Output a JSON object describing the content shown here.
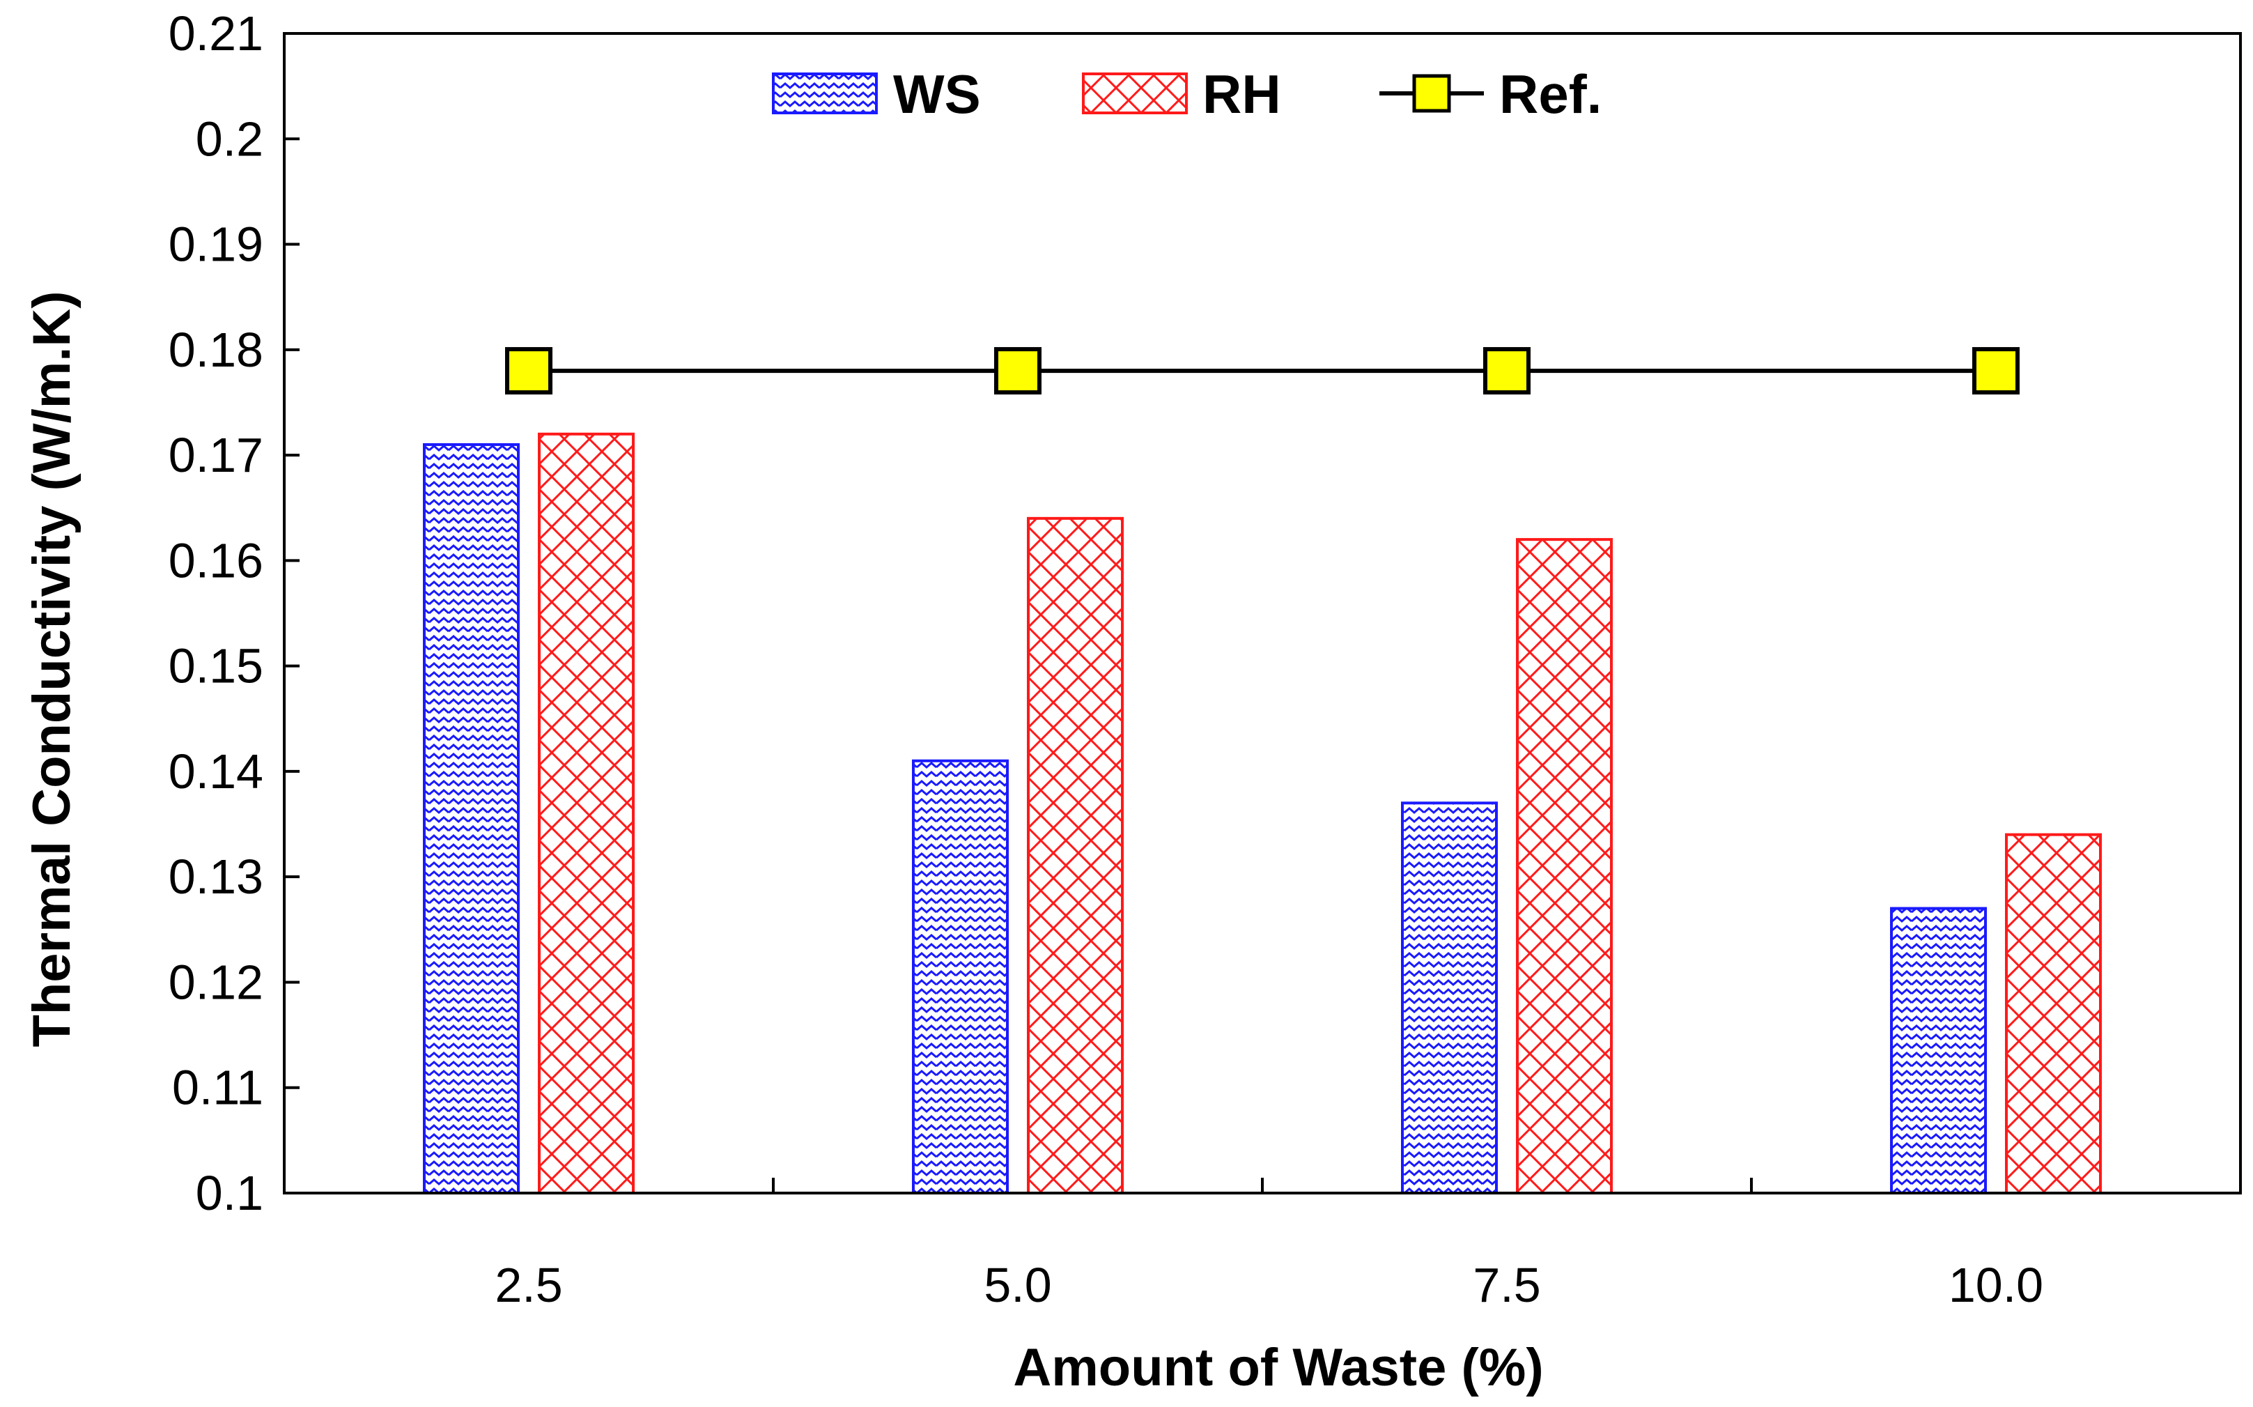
{
  "chart_data": {
    "type": "bar",
    "title": "",
    "xlabel": "Amount of Waste (%)",
    "ylabel": "Thermal Conductivity (W/m.K)",
    "categories": [
      "2.5",
      "5.0",
      "7.5",
      "10.0"
    ],
    "ylim": [
      0.1,
      0.21
    ],
    "yticks": [
      0.1,
      0.11,
      0.12,
      0.13,
      0.14,
      0.15,
      0.16,
      0.17,
      0.18,
      0.19,
      0.2,
      0.21
    ],
    "ytick_labels": [
      "0.1",
      "0.11",
      "0.12",
      "0.13",
      "0.14",
      "0.15",
      "0.16",
      "0.17",
      "0.18",
      "0.19",
      "0.2",
      "0.21"
    ],
    "grid": false,
    "legend_position": "top-center",
    "series": [
      {
        "name": "WS",
        "kind": "bar",
        "pattern": "zigzag",
        "color": "#1a1aff",
        "values": [
          0.171,
          0.141,
          0.137,
          0.127
        ]
      },
      {
        "name": "RH",
        "kind": "bar",
        "pattern": "crosshatch",
        "color": "#ff1a1a",
        "values": [
          0.172,
          0.164,
          0.162,
          0.134
        ]
      },
      {
        "name": "Ref.",
        "kind": "line",
        "marker": "square",
        "color": "#000000",
        "marker_fill": "#ffff00",
        "values": [
          0.178,
          0.178,
          0.178,
          0.178
        ]
      }
    ]
  }
}
